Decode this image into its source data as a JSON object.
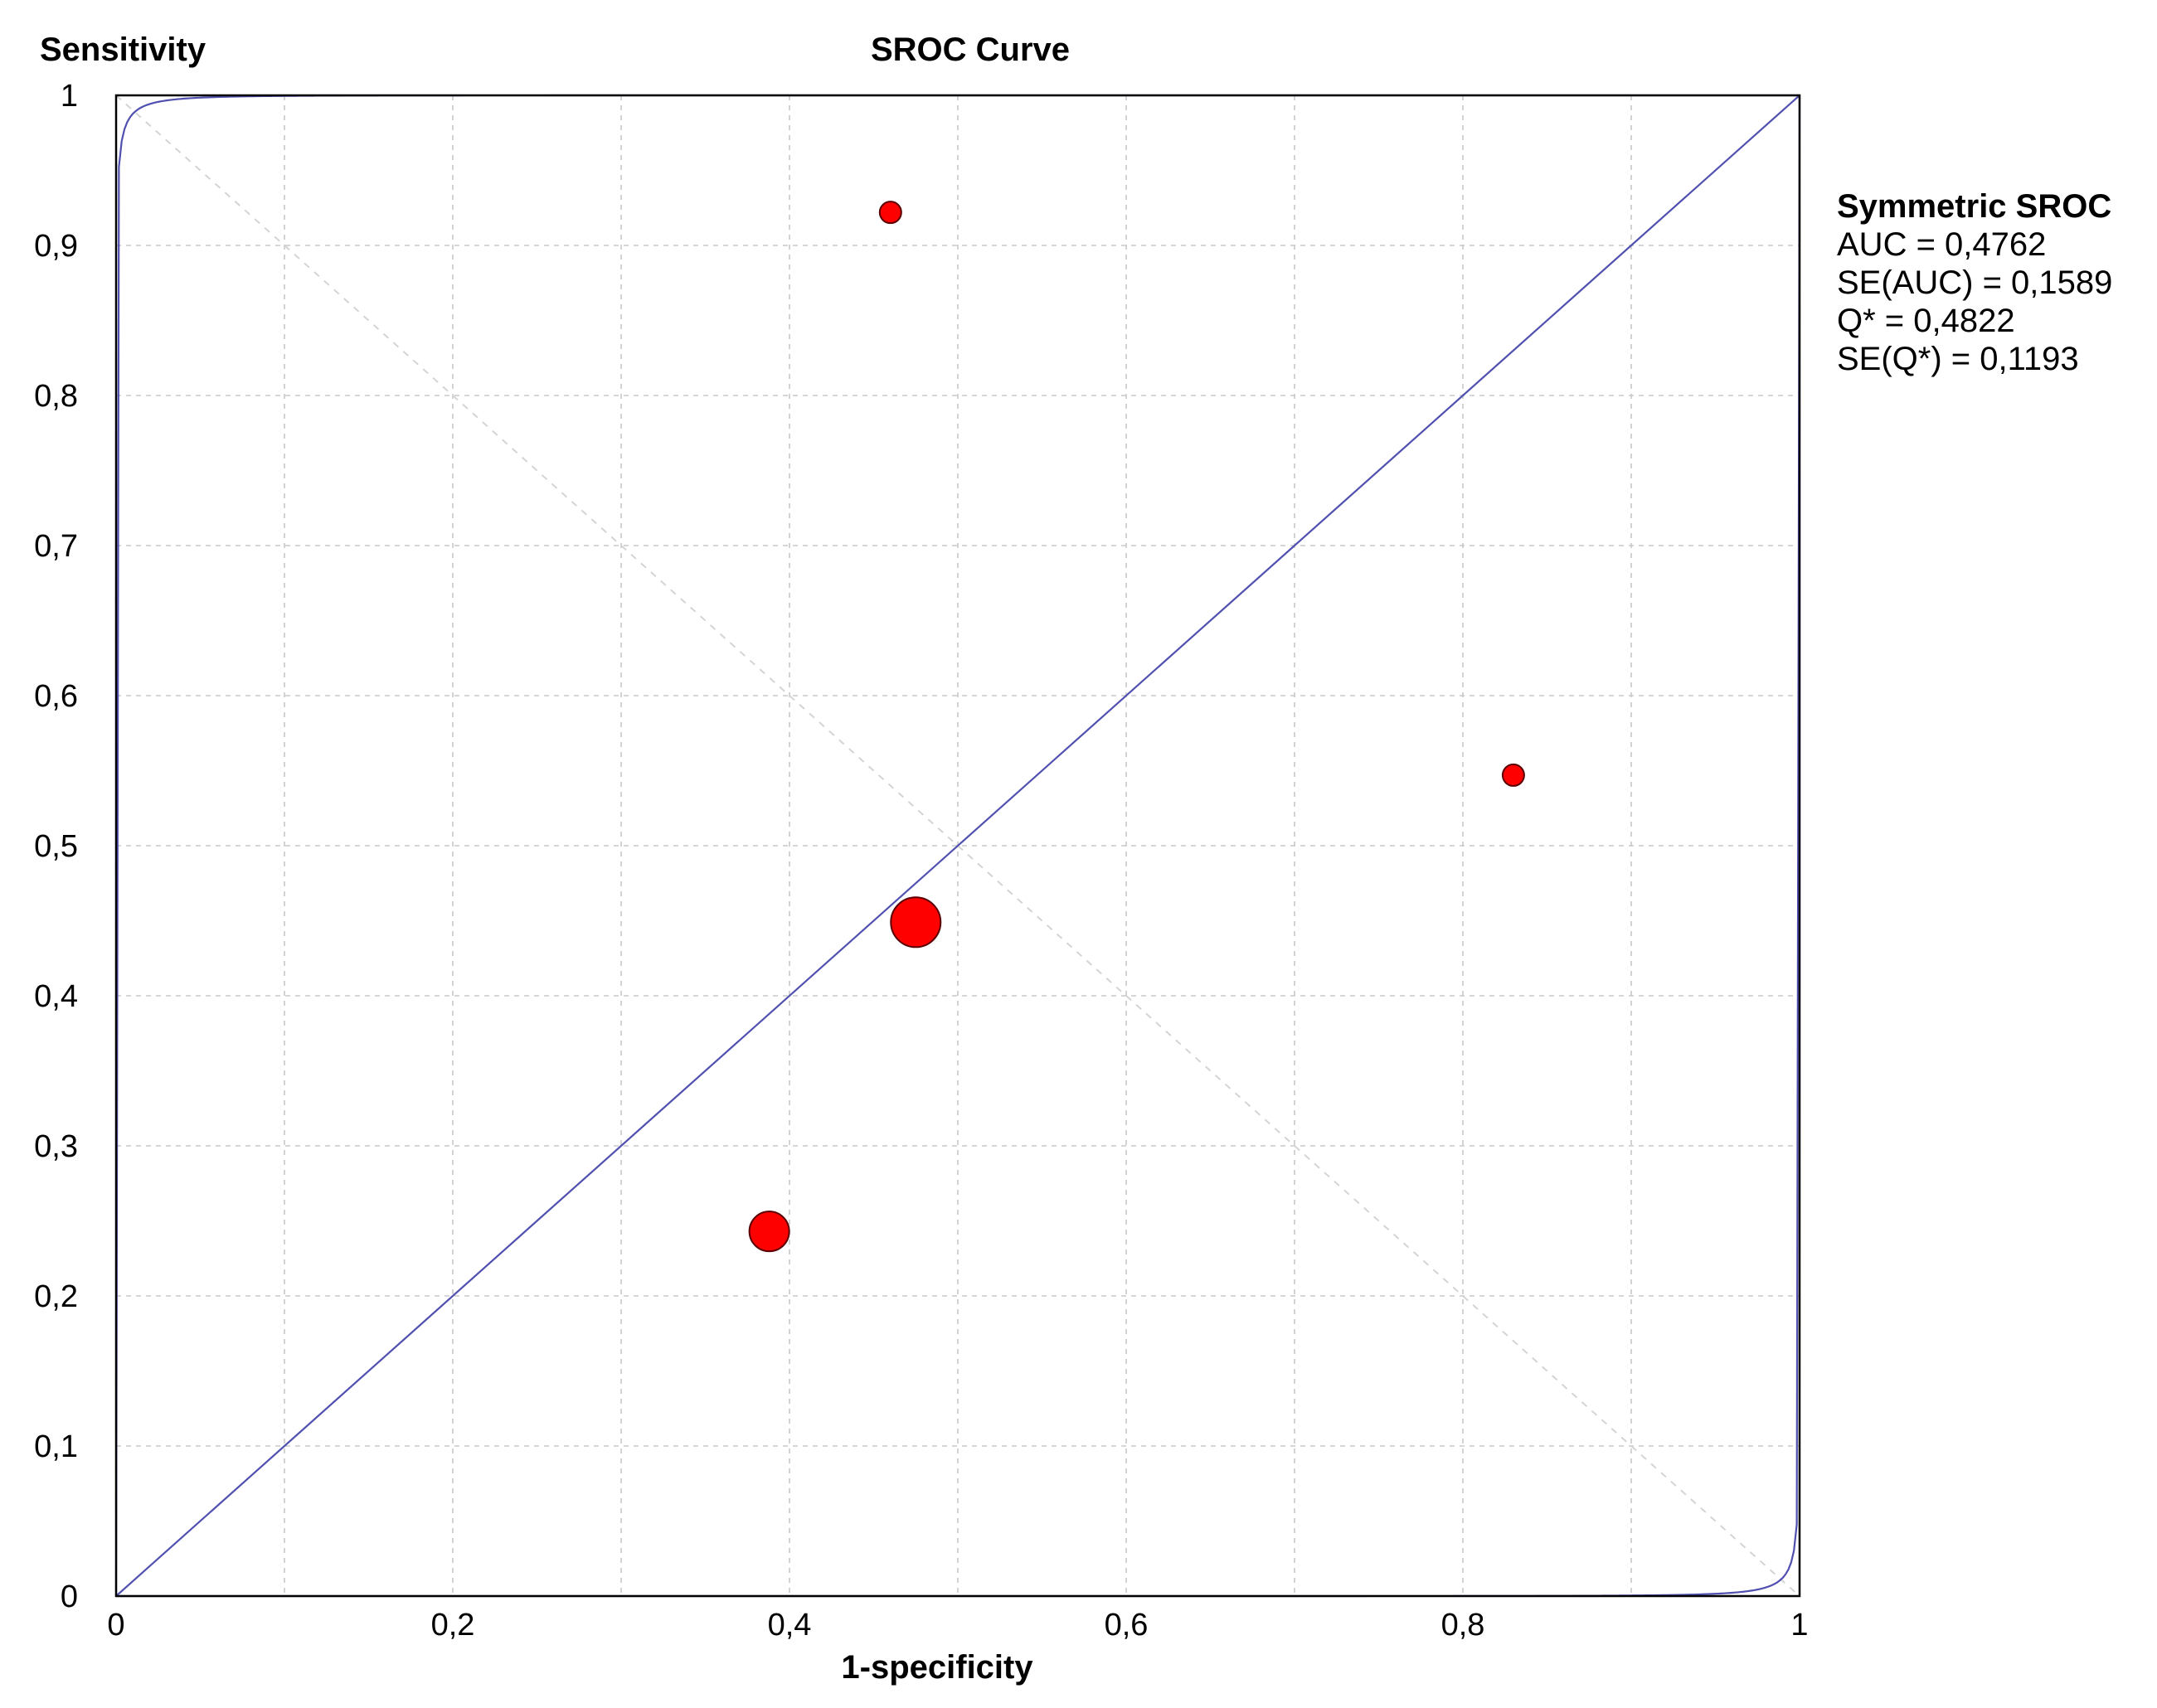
{
  "chart_data": {
    "type": "scatter",
    "title": "SROC Curve",
    "xlabel": "1-specificity",
    "ylabel": "Sensitivity",
    "xlim": [
      0,
      1
    ],
    "ylim": [
      0,
      1
    ],
    "grid": true,
    "x_ticks": [
      "0",
      "0,2",
      "0,4",
      "0,6",
      "0,8",
      "1"
    ],
    "y_ticks": [
      "0",
      "0,1",
      "0,2",
      "0,3",
      "0,4",
      "0,5",
      "0,6",
      "0,7",
      "0,8",
      "0,9",
      "1"
    ],
    "points": [
      {
        "x": 0.46,
        "y": 0.922,
        "size": "small"
      },
      {
        "x": 0.83,
        "y": 0.547,
        "size": "small"
      },
      {
        "x": 0.475,
        "y": 0.449,
        "size": "large"
      },
      {
        "x": 0.388,
        "y": 0.243,
        "size": "medium"
      }
    ],
    "curves": {
      "symmetric_sroc": "y = x",
      "confidence_bound_parameter": 6.5
    },
    "annotation": {
      "heading": "Symmetric SROC",
      "lines": [
        "AUC = 0,4762",
        "SE(AUC) = 0,1589",
        "Q* = 0,4822",
        "SE(Q*) = 0,1193"
      ]
    },
    "colors": {
      "points": "#ff0000",
      "curves": "#5050b0",
      "grid": "#c8c8c8",
      "axes": "#000000"
    }
  }
}
